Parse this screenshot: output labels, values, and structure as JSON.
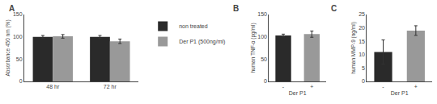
{
  "chart_data": [
    {
      "type": "bar",
      "title": "A",
      "categories": [
        "48 hr",
        "72 hr"
      ],
      "series": [
        {
          "name": "non treated",
          "color": "#2a2a2a",
          "values": [
            100,
            100
          ],
          "errors": [
            3,
            3
          ]
        },
        {
          "name": "Der P1 (500ng/ml)",
          "color": "#999999",
          "values": [
            101,
            90
          ],
          "errors": [
            4,
            5
          ]
        }
      ],
      "ylabel": "Absorbance 450 nm (%)",
      "ylim": [
        0,
        150
      ],
      "yticks": [
        0,
        50,
        100,
        150
      ],
      "grid": false,
      "legend": "right"
    },
    {
      "type": "bar",
      "title": "B",
      "categories": [
        "-",
        "+"
      ],
      "values": [
        103,
        106
      ],
      "errors": [
        3,
        7
      ],
      "colors": [
        "#2a2a2a",
        "#999999"
      ],
      "xlabel": "Der P1",
      "ylabel": "human TNF-α (pg/ml)",
      "ylim": [
        0,
        150
      ],
      "yticks": [
        0,
        50,
        100,
        150
      ],
      "grid": false
    },
    {
      "type": "bar",
      "title": "C",
      "categories": [
        "-",
        "+"
      ],
      "values": [
        11,
        19
      ],
      "errors": [
        4.5,
        1.8
      ],
      "colors": [
        "#2a2a2a",
        "#999999"
      ],
      "xlabel": "Der P1",
      "ylabel": "human MMP-9 (ng/ml)",
      "ylim": [
        0,
        25
      ],
      "yticks": [
        0,
        5,
        10,
        15,
        20,
        25
      ],
      "grid": false
    }
  ]
}
